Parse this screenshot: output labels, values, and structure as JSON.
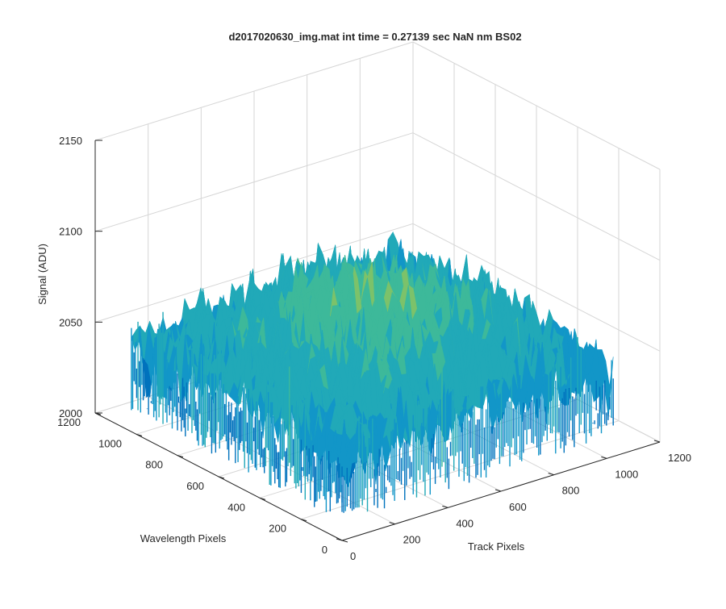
{
  "chart_data": {
    "type": "surface",
    "title": "d2017020630_img.mat int time = 0.27139 sec  NaN nm BS02",
    "xlabel": "Track Pixels",
    "ylabel": "Wavelength Pixels",
    "zlabel": "Signal (ADU)",
    "xlim": [
      0,
      1200
    ],
    "ylim": [
      0,
      1200
    ],
    "zlim": [
      2000,
      2150
    ],
    "xticks": [
      "0",
      "200",
      "400",
      "600",
      "800",
      "1000",
      "1200"
    ],
    "yticks": [
      "0",
      "200",
      "400",
      "600",
      "800",
      "1000",
      "1200"
    ],
    "zticks": [
      "2000",
      "2050",
      "2100",
      "2150"
    ],
    "grid": true,
    "colormap": [
      "#0072bd",
      "#1296c8",
      "#21a9b8",
      "#3db99a",
      "#7cc26a",
      "#c0c644",
      "#e9c735"
    ],
    "surface": {
      "x_extent": [
        0,
        1024
      ],
      "y_extent": [
        0,
        1024
      ],
      "base_level": 2045,
      "center_peak": 2080,
      "noise_amplitude": 30
    }
  }
}
